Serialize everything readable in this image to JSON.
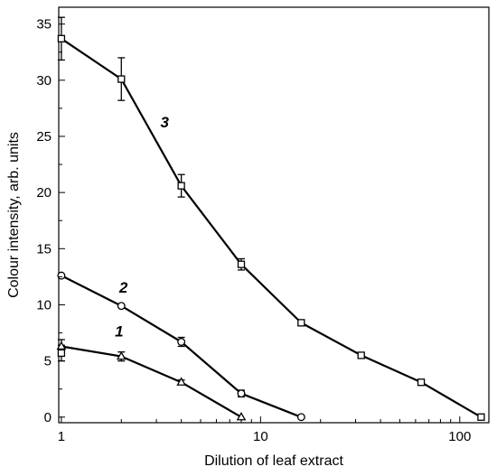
{
  "chart_data": {
    "type": "line",
    "xlabel": "Dilution of leaf extract",
    "ylabel": "Colour intensity, arb. units",
    "xscale": "log",
    "xlim": [
      0.97,
      140
    ],
    "ylim": [
      -0.5,
      36.5
    ],
    "x_ticks": [
      1,
      10,
      100
    ],
    "x_tick_labels": [
      "1",
      "10",
      "100"
    ],
    "y_ticks": [
      0,
      5,
      10,
      15,
      20,
      25,
      30,
      35
    ],
    "y_tick_labels": [
      "0",
      "5",
      "10",
      "15",
      "20",
      "25",
      "30",
      "35"
    ],
    "grid": false,
    "legend": "none",
    "series": [
      {
        "name": "1",
        "marker": "triangle",
        "x": [
          1,
          2,
          4,
          8
        ],
        "y": [
          6.3,
          5.4,
          3.1,
          0.0
        ],
        "err": [
          0.6,
          0.4,
          0.2,
          0.0
        ]
      },
      {
        "name": "2",
        "marker": "circle",
        "x": [
          1,
          2,
          4,
          8,
          16
        ],
        "y": [
          12.6,
          9.9,
          6.7,
          2.1,
          0.0
        ],
        "err": [
          0.0,
          0.0,
          0.4,
          0.3,
          0.0
        ]
      },
      {
        "name": "3",
        "marker": "square",
        "x": [
          1,
          2,
          4,
          8,
          16,
          32,
          64,
          128
        ],
        "y": [
          33.7,
          30.1,
          20.6,
          13.6,
          8.4,
          5.5,
          3.1,
          0.0
        ],
        "err": [
          1.9,
          1.9,
          1.0,
          0.5,
          0.2,
          0.1,
          0.2,
          0.0
        ]
      }
    ],
    "extra_points": [
      {
        "marker": "square",
        "x": 1,
        "y": 5.7,
        "err": 0.7
      }
    ],
    "annotations": [
      {
        "text": "1",
        "x": 1.95,
        "y": 7.2
      },
      {
        "text": "2",
        "x": 2.05,
        "y": 11.1
      },
      {
        "text": "3",
        "x": 3.3,
        "y": 25.8
      }
    ]
  }
}
